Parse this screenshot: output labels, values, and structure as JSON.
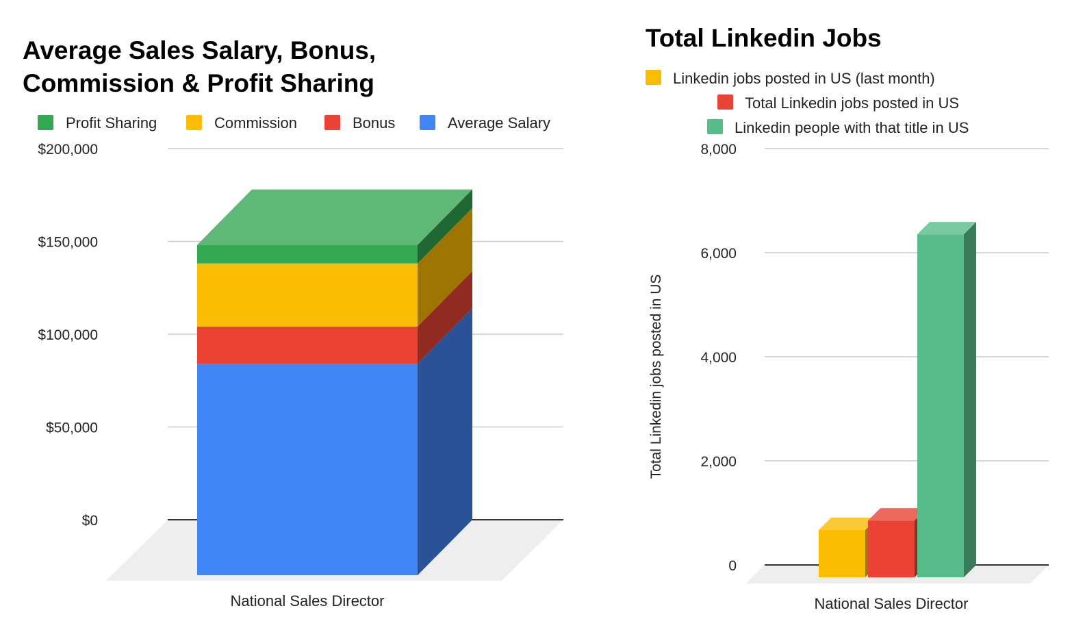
{
  "chart_data": [
    {
      "type": "bar",
      "stacked": true,
      "three_d": true,
      "title": "Average Sales Salary, Bonus, Commission & Profit Sharing",
      "title_lines": [
        "Average Sales Salary, Bonus,",
        "Commission & Profit Sharing"
      ],
      "categories": [
        "National Sales Director"
      ],
      "series": [
        {
          "name": "Average Salary",
          "values": [
            114000
          ],
          "color": "#4285F4"
        },
        {
          "name": "Bonus",
          "values": [
            20000
          ],
          "color": "#EA4335"
        },
        {
          "name": "Commission",
          "values": [
            34000
          ],
          "color": "#FBBC04"
        },
        {
          "name": "Profit Sharing",
          "values": [
            10000
          ],
          "color": "#34A853"
        }
      ],
      "legend_order": [
        "Profit Sharing",
        "Commission",
        "Bonus",
        "Average Salary"
      ],
      "legend_position": "top",
      "ylim": [
        0,
        200000
      ],
      "yticks": [
        "$0",
        "$50,000",
        "$100,000",
        "$150,000",
        "$200,000"
      ],
      "xlabel": "",
      "ylabel": "",
      "grid": true
    },
    {
      "type": "bar",
      "three_d": true,
      "title": "Total Linkedin Jobs",
      "categories": [
        "National Sales Director"
      ],
      "series": [
        {
          "name": "Linkedin jobs posted in US (last month)",
          "values": [
            910
          ],
          "color": "#FBBC04"
        },
        {
          "name": "Total Linkedin jobs posted in US",
          "values": [
            1090
          ],
          "color": "#EA4335"
        },
        {
          "name": "Linkedin people with that title in US",
          "values": [
            6590
          ],
          "color": "#57BB8A"
        }
      ],
      "legend_position": "top",
      "ylim": [
        0,
        8000
      ],
      "yticks": [
        "0",
        "2,000",
        "4,000",
        "6,000",
        "8,000"
      ],
      "xlabel": "",
      "ylabel": "Total Linkedin jobs posted in US",
      "grid": true
    }
  ]
}
